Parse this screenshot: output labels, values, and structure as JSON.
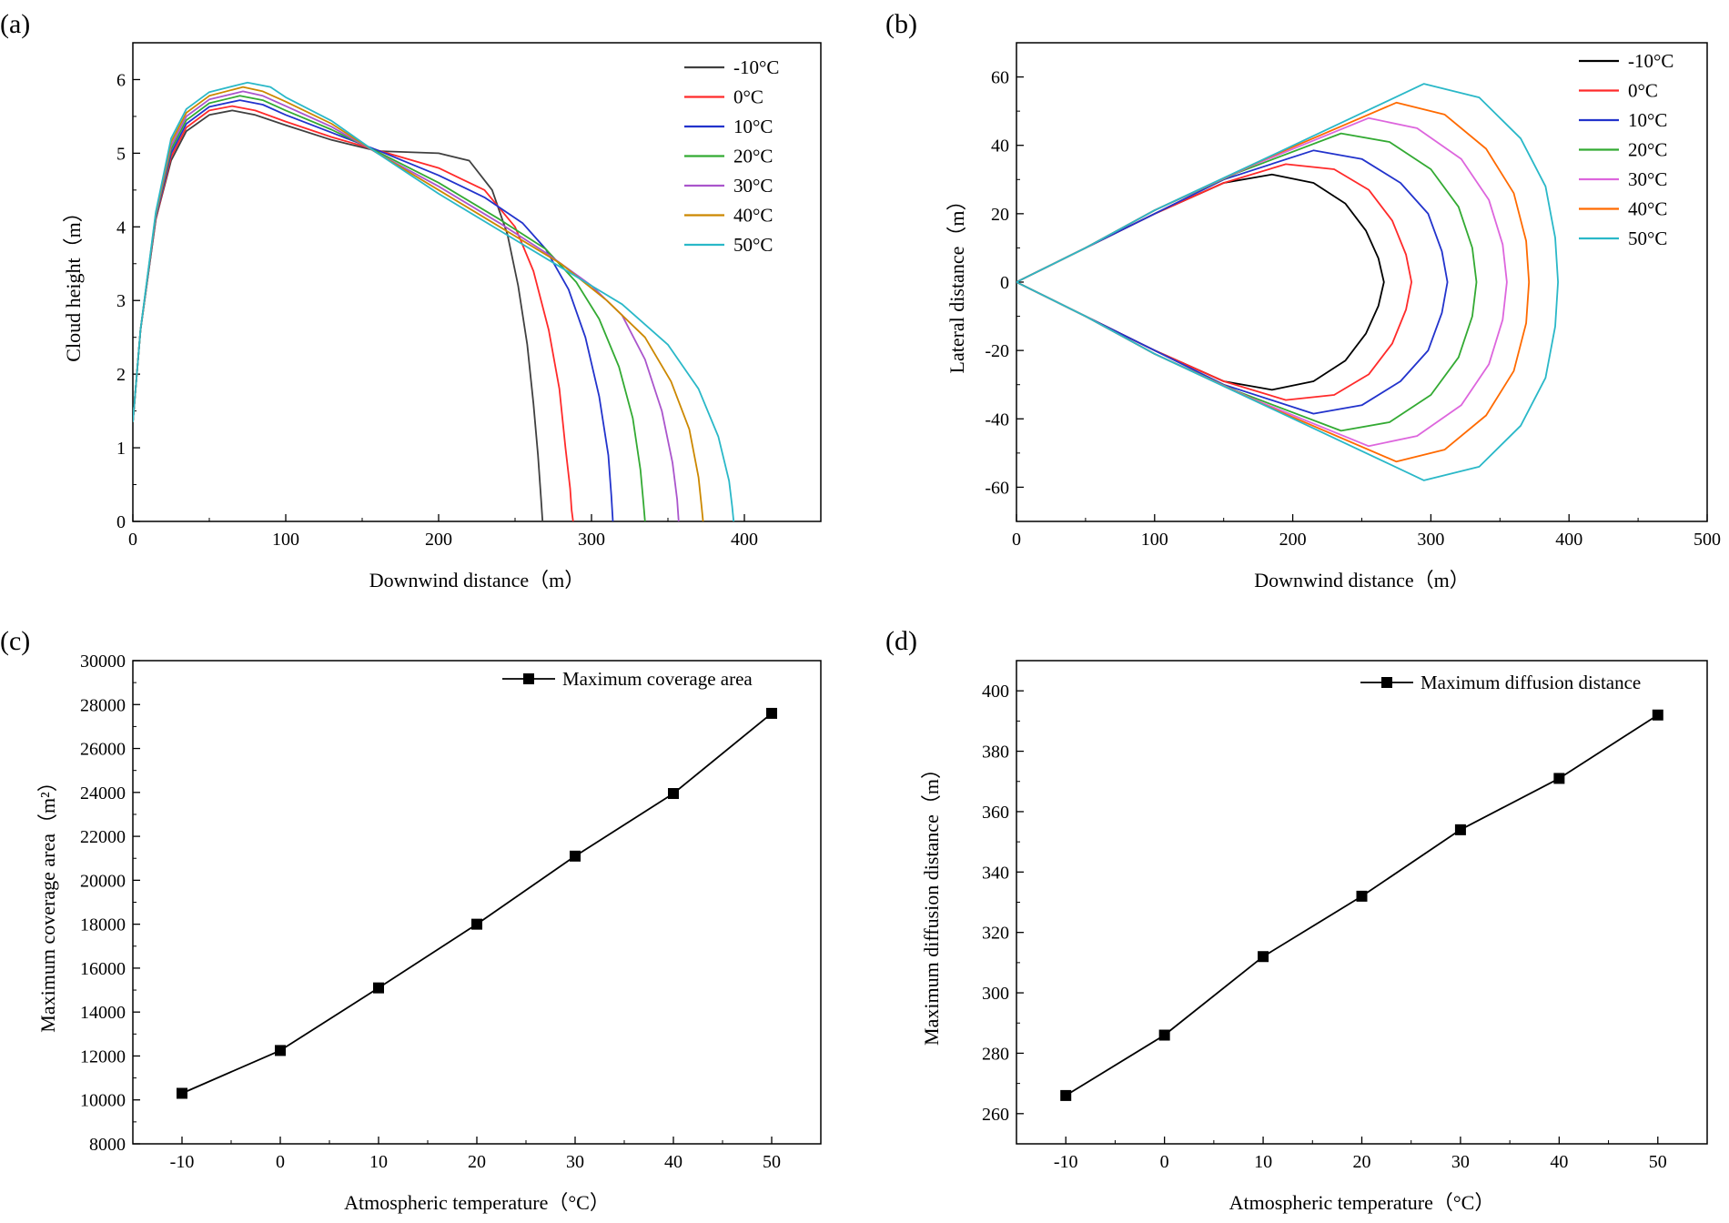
{
  "chart_data": [
    {
      "id": "a",
      "panel_label": "(a)",
      "type": "line",
      "title": "",
      "xlabel": "Downwind distance（m）",
      "ylabel": "Cloud height（m）",
      "xlim": [
        0,
        450
      ],
      "ylim": [
        0,
        6.5
      ],
      "xticks": [
        0,
        100,
        200,
        300,
        400
      ],
      "yticks": [
        0,
        1,
        2,
        3,
        4,
        5,
        6
      ],
      "grid": false,
      "legend_position": "top-right",
      "series": [
        {
          "name": "-10°C",
          "color": "#404040",
          "x": [
            0,
            5,
            15,
            25,
            35,
            50,
            65,
            80,
            100,
            130,
            160,
            200,
            220,
            235,
            245,
            252,
            258,
            262,
            265,
            267,
            268
          ],
          "y": [
            1.35,
            2.6,
            4.1,
            4.9,
            5.3,
            5.52,
            5.58,
            5.52,
            5.38,
            5.18,
            5.03,
            5.0,
            4.9,
            4.5,
            3.9,
            3.2,
            2.4,
            1.6,
            0.9,
            0.3,
            0
          ]
        },
        {
          "name": "0°C",
          "color": "#ff2a2a",
          "x": [
            0,
            5,
            15,
            25,
            35,
            50,
            65,
            80,
            100,
            130,
            160,
            200,
            230,
            250,
            262,
            272,
            279,
            283,
            286,
            287,
            288
          ],
          "y": [
            1.35,
            2.6,
            4.1,
            4.95,
            5.35,
            5.58,
            5.64,
            5.58,
            5.43,
            5.22,
            5.04,
            4.8,
            4.5,
            4.0,
            3.4,
            2.6,
            1.8,
            1.0,
            0.45,
            0.15,
            0
          ]
        },
        {
          "name": "10°C",
          "color": "#2233cc",
          "x": [
            0,
            5,
            15,
            25,
            35,
            50,
            70,
            85,
            100,
            130,
            160,
            200,
            230,
            255,
            270,
            285,
            296,
            305,
            311,
            313,
            314
          ],
          "y": [
            1.35,
            2.6,
            4.12,
            5.0,
            5.4,
            5.63,
            5.72,
            5.66,
            5.52,
            5.28,
            5.04,
            4.7,
            4.4,
            4.05,
            3.7,
            3.15,
            2.5,
            1.7,
            0.9,
            0.35,
            0
          ]
        },
        {
          "name": "20°C",
          "color": "#33aa33",
          "x": [
            0,
            5,
            15,
            25,
            35,
            50,
            70,
            85,
            100,
            130,
            160,
            200,
            240,
            270,
            290,
            305,
            318,
            327,
            332,
            334,
            335
          ],
          "y": [
            1.35,
            2.6,
            4.14,
            5.05,
            5.45,
            5.68,
            5.78,
            5.72,
            5.58,
            5.32,
            5.02,
            4.6,
            4.1,
            3.7,
            3.25,
            2.75,
            2.1,
            1.4,
            0.7,
            0.25,
            0
          ]
        },
        {
          "name": "30°C",
          "color": "#aa55cc",
          "x": [
            0,
            5,
            15,
            25,
            35,
            50,
            72,
            85,
            100,
            130,
            160,
            200,
            240,
            270,
            300,
            320,
            335,
            346,
            353,
            356,
            357
          ],
          "y": [
            1.35,
            2.6,
            4.16,
            5.1,
            5.5,
            5.73,
            5.84,
            5.78,
            5.64,
            5.36,
            5.0,
            4.55,
            4.05,
            3.65,
            3.2,
            2.8,
            2.2,
            1.5,
            0.8,
            0.3,
            0
          ]
        },
        {
          "name": "40°C",
          "color": "#cc8800",
          "x": [
            0,
            5,
            15,
            25,
            35,
            50,
            72,
            85,
            100,
            130,
            160,
            200,
            240,
            280,
            310,
            335,
            352,
            364,
            370,
            372,
            373
          ],
          "y": [
            1.35,
            2.6,
            4.18,
            5.15,
            5.55,
            5.78,
            5.9,
            5.84,
            5.7,
            5.4,
            5.0,
            4.5,
            4.0,
            3.5,
            3.0,
            2.5,
            1.9,
            1.25,
            0.6,
            0.2,
            0
          ]
        },
        {
          "name": "50°C",
          "color": "#2ab8c8",
          "x": [
            0,
            5,
            15,
            25,
            35,
            50,
            75,
            90,
            100,
            130,
            160,
            200,
            240,
            280,
            320,
            350,
            370,
            383,
            390,
            392,
            393
          ],
          "y": [
            1.35,
            2.6,
            4.2,
            5.2,
            5.6,
            5.83,
            5.96,
            5.9,
            5.76,
            5.44,
            5.0,
            4.45,
            3.95,
            3.45,
            2.95,
            2.4,
            1.8,
            1.15,
            0.55,
            0.2,
            0
          ]
        }
      ]
    },
    {
      "id": "b",
      "panel_label": "(b)",
      "type": "line",
      "title": "",
      "xlabel": "Downwind distance（m）",
      "ylabel": "Lateral distance（m）",
      "xlim": [
        0,
        500
      ],
      "ylim": [
        -70,
        70
      ],
      "xticks": [
        0,
        100,
        200,
        300,
        400,
        500
      ],
      "yticks": [
        -60,
        -40,
        -20,
        0,
        20,
        40,
        60
      ],
      "grid": false,
      "legend_position": "top-right",
      "series": [
        {
          "name": "-10°C",
          "color": "#000000",
          "x": [
            0,
            50,
            100,
            150,
            185,
            215,
            238,
            253,
            262,
            266,
            262,
            253,
            238,
            215,
            185,
            150,
            100,
            50,
            0
          ],
          "y": [
            0,
            10,
            20,
            29,
            31.5,
            29,
            23,
            15,
            7,
            0,
            -7,
            -15,
            -23,
            -29,
            -31.5,
            -29,
            -20,
            -10,
            0
          ]
        },
        {
          "name": "0°C",
          "color": "#ff2a2a",
          "x": [
            0,
            50,
            100,
            150,
            195,
            230,
            255,
            272,
            282,
            286,
            282,
            272,
            255,
            230,
            195,
            150,
            100,
            50,
            0
          ],
          "y": [
            0,
            10,
            20,
            29,
            34.5,
            33,
            27,
            18,
            8,
            0,
            -8,
            -18,
            -27,
            -33,
            -34.5,
            -29,
            -20,
            -10,
            0
          ]
        },
        {
          "name": "10°C",
          "color": "#2233cc",
          "x": [
            0,
            50,
            100,
            150,
            215,
            250,
            278,
            298,
            308,
            312,
            308,
            298,
            278,
            250,
            215,
            150,
            100,
            50,
            0
          ],
          "y": [
            0,
            10,
            20,
            30,
            38.5,
            36,
            29,
            20,
            9,
            0,
            -9,
            -20,
            -29,
            -36,
            -38.5,
            -30,
            -20,
            -10,
            0
          ]
        },
        {
          "name": "20°C",
          "color": "#33aa33",
          "x": [
            0,
            50,
            100,
            160,
            235,
            270,
            300,
            320,
            330,
            333,
            330,
            320,
            300,
            270,
            235,
            160,
            100,
            50,
            0
          ],
          "y": [
            0,
            10,
            21,
            32,
            43.5,
            41,
            33,
            22,
            10,
            0,
            -10,
            -22,
            -33,
            -41,
            -43.5,
            -32,
            -21,
            -10,
            0
          ]
        },
        {
          "name": "30°C",
          "color": "#dd66dd",
          "x": [
            0,
            50,
            100,
            170,
            255,
            290,
            322,
            342,
            352,
            355,
            352,
            342,
            322,
            290,
            255,
            170,
            100,
            50,
            0
          ],
          "y": [
            0,
            10,
            21,
            34,
            48,
            45,
            36,
            24,
            11,
            0,
            -11,
            -24,
            -36,
            -45,
            -48,
            -34,
            -21,
            -10,
            0
          ]
        },
        {
          "name": "40°C",
          "color": "#ff6a00",
          "x": [
            0,
            50,
            100,
            180,
            275,
            310,
            340,
            360,
            369,
            371,
            369,
            360,
            340,
            310,
            275,
            180,
            100,
            50,
            0
          ],
          "y": [
            0,
            10,
            21,
            36,
            52.5,
            49,
            39,
            26,
            12,
            0,
            -12,
            -26,
            -39,
            -49,
            -52.5,
            -36,
            -21,
            -10,
            0
          ]
        },
        {
          "name": "50°C",
          "color": "#2ab8c8",
          "x": [
            0,
            50,
            100,
            190,
            295,
            335,
            365,
            383,
            390,
            392,
            390,
            383,
            365,
            335,
            295,
            190,
            100,
            50,
            0
          ],
          "y": [
            0,
            10,
            21,
            38,
            58,
            54,
            42,
            28,
            13,
            0,
            -13,
            -28,
            -42,
            -54,
            -58,
            -38,
            -21,
            -10,
            0
          ]
        }
      ]
    },
    {
      "id": "c",
      "panel_label": "(c)",
      "type": "line",
      "title": "",
      "xlabel": "Atmospheric temperature（°C）",
      "ylabel": "Maximum coverage area（m²）",
      "xlim": [
        -15,
        55
      ],
      "ylim": [
        8000,
        30000
      ],
      "xticks": [
        -10,
        0,
        10,
        20,
        30,
        40,
        50
      ],
      "yticks": [
        8000,
        10000,
        12000,
        14000,
        16000,
        18000,
        20000,
        22000,
        24000,
        26000,
        28000,
        30000
      ],
      "grid": false,
      "legend_position": "top-right",
      "series": [
        {
          "name": "Maximum coverage area",
          "color": "#000000",
          "x": [
            -10,
            0,
            10,
            20,
            30,
            40,
            50
          ],
          "y": [
            10300,
            12250,
            15100,
            18000,
            21100,
            23950,
            27600
          ]
        }
      ]
    },
    {
      "id": "d",
      "panel_label": "(d)",
      "type": "line",
      "title": "",
      "xlabel": "Atmospheric temperature（°C）",
      "ylabel": "Maximum diffusion distance（m）",
      "xlim": [
        -15,
        55
      ],
      "ylim": [
        250,
        410
      ],
      "xticks": [
        -10,
        0,
        10,
        20,
        30,
        40,
        50
      ],
      "yticks": [
        260,
        280,
        300,
        320,
        340,
        360,
        380,
        400
      ],
      "grid": false,
      "legend_position": "top-right",
      "series": [
        {
          "name": "Maximum diffusion distance",
          "color": "#000000",
          "x": [
            -10,
            0,
            10,
            20,
            30,
            40,
            50
          ],
          "y": [
            266,
            286,
            312,
            332,
            354,
            371,
            392
          ]
        }
      ]
    }
  ]
}
